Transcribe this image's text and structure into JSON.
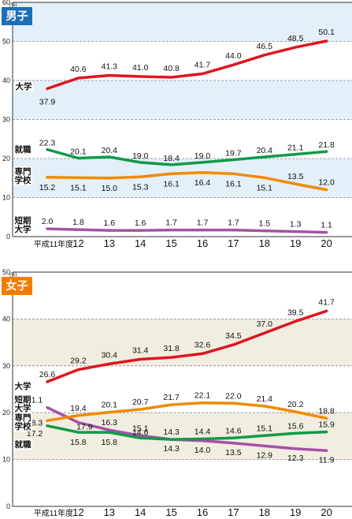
{
  "chart_data": [
    {
      "type": "line",
      "title": "男子",
      "title_color": "#1c6fb8",
      "band_color": "#e3eff9",
      "unit_label": "(%)",
      "ylim": [
        0,
        60
      ],
      "yticks": [
        0,
        10,
        20,
        30,
        40,
        50,
        60
      ],
      "grid": "dashed",
      "x_first_label": "平成11年度",
      "categories": [
        "11",
        "12",
        "13",
        "14",
        "15",
        "16",
        "17",
        "18",
        "19",
        "20"
      ],
      "series": [
        {
          "name": "大学",
          "color": "#e0151e",
          "values": [
            37.9,
            40.6,
            41.3,
            41.0,
            40.8,
            41.7,
            44.0,
            46.5,
            48.5,
            50.1
          ]
        },
        {
          "name": "就職",
          "color": "#119a48",
          "values": [
            22.3,
            20.1,
            20.4,
            19.0,
            18.4,
            19.0,
            19.7,
            20.4,
            21.1,
            21.8
          ]
        },
        {
          "name": "専門学校",
          "color": "#f08a00",
          "values": [
            15.2,
            15.1,
            15.0,
            15.3,
            16.1,
            16.4,
            16.1,
            15.1,
            13.5,
            12.0
          ]
        },
        {
          "name": "短期大学",
          "color": "#a650a8",
          "values": [
            2.0,
            1.8,
            1.6,
            1.6,
            1.7,
            1.7,
            1.7,
            1.5,
            1.3,
            1.1
          ]
        }
      ]
    },
    {
      "type": "line",
      "title": "女子",
      "title_color": "#ef7d00",
      "band_color": "#f1ede0",
      "unit_label": "(%)",
      "ylim": [
        0,
        50
      ],
      "yticks": [
        0,
        10,
        20,
        30,
        40,
        50
      ],
      "grid": "dashed",
      "x_first_label": "平成11年度",
      "categories": [
        "11",
        "12",
        "13",
        "14",
        "15",
        "16",
        "17",
        "18",
        "19",
        "20"
      ],
      "series": [
        {
          "name": "大学",
          "color": "#e0151e",
          "values": [
            26.6,
            29.2,
            30.4,
            31.4,
            31.8,
            32.6,
            34.5,
            37.0,
            39.5,
            41.7
          ]
        },
        {
          "name": "短期大学",
          "color": "#a650a8",
          "values": [
            21.1,
            17.9,
            16.3,
            15.1,
            14.3,
            14.0,
            13.5,
            12.9,
            12.3,
            11.9
          ]
        },
        {
          "name": "専門学校",
          "color": "#f08a00",
          "values": [
            18.3,
            19.4,
            20.1,
            20.7,
            21.7,
            22.1,
            22.0,
            21.4,
            20.2,
            18.8
          ]
        },
        {
          "name": "就職",
          "color": "#119a48",
          "values": [
            17.2,
            15.8,
            15.8,
            14.6,
            14.3,
            14.4,
            14.6,
            15.1,
            15.6,
            15.9
          ]
        }
      ]
    }
  ]
}
